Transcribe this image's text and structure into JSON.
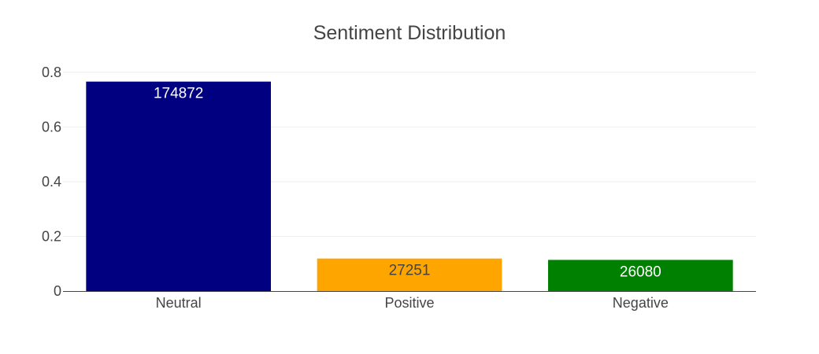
{
  "chart_data": {
    "type": "bar",
    "title": "Sentiment Distribution",
    "xlabel": "",
    "ylabel": "",
    "categories": [
      "Neutral",
      "Positive",
      "Negative"
    ],
    "values": [
      0.766,
      0.119,
      0.114
    ],
    "data_labels": [
      "174872",
      "27251",
      "26080"
    ],
    "colors": [
      "#000080",
      "#FFA500",
      "#008000"
    ],
    "data_label_colors": [
      "#ffffff",
      "#444444",
      "#ffffff"
    ],
    "ylim": [
      0,
      0.84
    ],
    "yticks": [
      0,
      0.2,
      0.4,
      0.6,
      0.8
    ],
    "ytick_labels": [
      "0",
      "0.2",
      "0.4",
      "0.6",
      "0.8"
    ],
    "grid": true,
    "legend": "none"
  }
}
